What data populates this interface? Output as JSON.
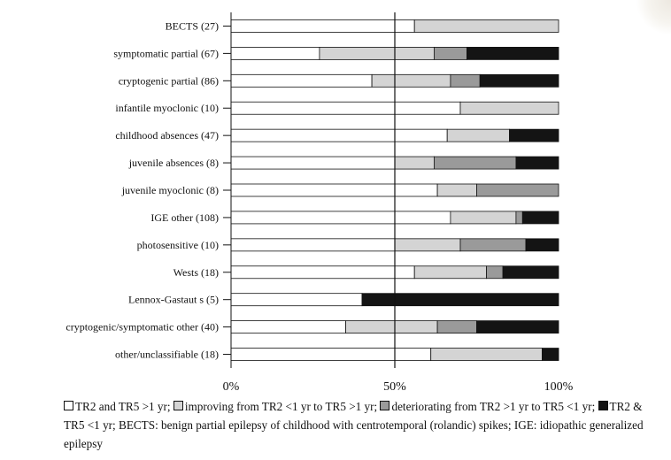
{
  "legend": {
    "item1": "TR2 and TR5 >1 yr;",
    "item2": "improving from TR2 <1 yr to TR5 >1 yr;",
    "item3": "deteriorating from TR2 >1 yr to TR5 <1 yr;",
    "item4": "TR2 & TR5 <1 yr;",
    "note": "BECTS: benign partial epilepsy of childhood with centrotemporal (rolandic) spikes; IGE: idiopathic generalized epilepsy"
  },
  "colors": {
    "tr2_tr5_gt1": "#ffffff",
    "improving": "#d4d4d4",
    "deteriorating": "#9a9a9a",
    "tr2_tr5_lt1": "#141414"
  },
  "chart_data": {
    "type": "bar",
    "orientation": "horizontal",
    "stacked": "percent",
    "categories": [
      "BECTS (27)",
      "symptomatic partial (67)",
      "cryptogenic partial (86)",
      "infantile myoclonic (10)",
      "childhood absences (47)",
      "juvenile absences (8)",
      "juvenile myoclonic (8)",
      "IGE other (108)",
      "photosensitive (10)",
      "Wests (18)",
      "Lennox-Gastaut s (5)",
      "cryptogenic/symptomatic other (40)",
      "other/unclassifiable (18)"
    ],
    "series": [
      {
        "name": "TR2 and TR5 >1 yr",
        "color": "#ffffff",
        "values": [
          56,
          27,
          43,
          70,
          66,
          50,
          63,
          67,
          50,
          56,
          40,
          35,
          61
        ]
      },
      {
        "name": "improving from TR2 <1 yr to TR5 >1 yr",
        "color": "#d4d4d4",
        "values": [
          44,
          35,
          24,
          30,
          19,
          12,
          12,
          20,
          20,
          22,
          0,
          28,
          34
        ]
      },
      {
        "name": "deteriorating from TR2 >1 yr to TR5 <1 yr",
        "color": "#9a9a9a",
        "values": [
          0,
          10,
          9,
          0,
          0,
          25,
          25,
          2,
          20,
          5,
          0,
          12,
          0
        ]
      },
      {
        "name": "TR2 & TR5 <1 yr",
        "color": "#141414",
        "values": [
          0,
          28,
          24,
          0,
          15,
          13,
          0,
          11,
          10,
          17,
          60,
          25,
          5
        ]
      }
    ],
    "xticks": [
      "0%",
      "50%",
      "100%"
    ],
    "xlim": [
      0,
      100
    ],
    "reference_line": 50,
    "grid": false
  }
}
